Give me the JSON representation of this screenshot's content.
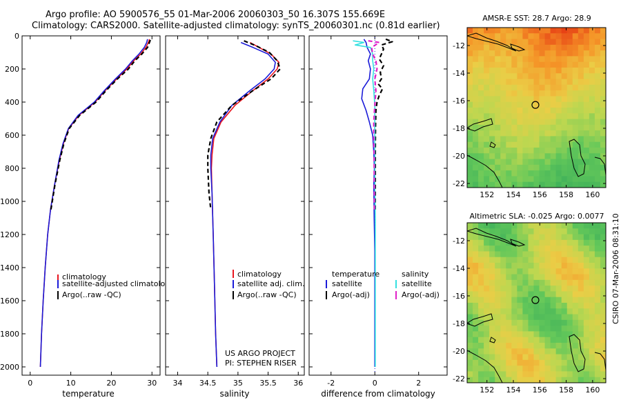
{
  "header": {
    "title_line1": "Argo profile: AO 5900576_55 01-Mar-2006 20060303_50 16.307S 155.669E",
    "title_line2": "Climatology: CARS2000. Satellite-adjusted climatology: synTS_20060301.nc (0.81d earlier)"
  },
  "footer": {
    "project": "US ARGO PROJECT",
    "pi": "PI: STEPHEN RISER",
    "stamp": "CSIRO 07-Mar-2006 08:31:10"
  },
  "colors": {
    "red": "#e8141e",
    "blue": "#1a1ad8",
    "black": "#000000",
    "cyan": "#33e0e0",
    "magenta": "#e020c8"
  },
  "chart_data": [
    {
      "type": "line",
      "id": "temperature",
      "xlabel": "temperature",
      "xlim": [
        -2,
        32
      ],
      "ylim": [
        0,
        2050
      ],
      "xticks": [
        0,
        10,
        20,
        30
      ],
      "yticks": [
        0,
        200,
        400,
        600,
        800,
        1000,
        1200,
        1400,
        1600,
        1800,
        2000
      ],
      "legend": [
        "climatology",
        "satellite-adjusted climatology",
        "Argo(..raw -QC)"
      ],
      "series": [
        {
          "name": "climatology",
          "color": "red",
          "points": [
            [
              29.4,
              20
            ],
            [
              29.1,
              40
            ],
            [
              28.5,
              70
            ],
            [
              27.2,
              110
            ],
            [
              25.5,
              150
            ],
            [
              23.8,
              200
            ],
            [
              21.3,
              260
            ],
            [
              18.5,
              330
            ],
            [
              16.0,
              400
            ],
            [
              12.0,
              480
            ],
            [
              9.5,
              560
            ],
            [
              8.2,
              650
            ],
            [
              7.2,
              750
            ],
            [
              6.0,
              900
            ],
            [
              5.0,
              1050
            ],
            [
              4.3,
              1200
            ],
            [
              3.7,
              1400
            ],
            [
              3.2,
              1600
            ],
            [
              2.8,
              1800
            ],
            [
              2.5,
              2000
            ]
          ]
        },
        {
          "name": "satellite-adjusted climatology",
          "color": "blue",
          "points": [
            [
              28.9,
              20
            ],
            [
              28.7,
              40
            ],
            [
              28.1,
              70
            ],
            [
              26.8,
              110
            ],
            [
              25.2,
              150
            ],
            [
              23.5,
              200
            ],
            [
              21.0,
              260
            ],
            [
              18.3,
              330
            ],
            [
              15.8,
              400
            ],
            [
              11.8,
              480
            ],
            [
              9.4,
              560
            ],
            [
              8.1,
              650
            ],
            [
              7.1,
              750
            ],
            [
              6.0,
              900
            ],
            [
              5.0,
              1050
            ],
            [
              4.3,
              1200
            ],
            [
              3.7,
              1400
            ],
            [
              3.2,
              1600
            ],
            [
              2.8,
              1800
            ],
            [
              2.5,
              2000
            ]
          ]
        },
        {
          "name": "Argo(..raw -QC)",
          "color": "black",
          "dashed": true,
          "points": [
            [
              29.6,
              25
            ],
            [
              29.3,
              45
            ],
            [
              28.9,
              70
            ],
            [
              27.5,
              110
            ],
            [
              25.8,
              150
            ],
            [
              24.2,
              200
            ],
            [
              21.5,
              260
            ],
            [
              18.7,
              330
            ],
            [
              16.2,
              400
            ],
            [
              12.2,
              480
            ],
            [
              9.6,
              560
            ],
            [
              8.3,
              650
            ],
            [
              7.3,
              750
            ],
            [
              6.1,
              900
            ],
            [
              5.1,
              1050
            ]
          ]
        }
      ]
    },
    {
      "type": "line",
      "id": "salinity",
      "xlabel": "salinity",
      "xlim": [
        33.8,
        36.1
      ],
      "ylim": [
        0,
        2050
      ],
      "xticks": [
        34,
        34.5,
        35,
        35.5,
        36
      ],
      "xticklabels": [
        "34",
        "34.5",
        "35",
        "35.5",
        "36"
      ],
      "yticks": [
        0,
        200,
        400,
        600,
        800,
        1000,
        1200,
        1400,
        1600,
        1800,
        2000
      ],
      "legend": [
        "climatology",
        "satellite adj. clim.",
        "Argo(..raw -QC)"
      ],
      "series": [
        {
          "name": "climatology",
          "color": "red",
          "points": [
            [
              35.2,
              40
            ],
            [
              35.35,
              70
            ],
            [
              35.55,
              110
            ],
            [
              35.68,
              160
            ],
            [
              35.65,
              200
            ],
            [
              35.5,
              260
            ],
            [
              35.25,
              330
            ],
            [
              34.95,
              420
            ],
            [
              34.72,
              520
            ],
            [
              34.6,
              620
            ],
            [
              34.57,
              720
            ],
            [
              34.56,
              800
            ],
            [
              34.57,
              950
            ],
            [
              34.59,
              1200
            ],
            [
              34.61,
              1500
            ],
            [
              34.63,
              1800
            ],
            [
              34.65,
              2000
            ]
          ]
        },
        {
          "name": "satellite adj. clim.",
          "color": "blue",
          "points": [
            [
              35.05,
              40
            ],
            [
              35.25,
              70
            ],
            [
              35.5,
              110
            ],
            [
              35.62,
              160
            ],
            [
              35.6,
              200
            ],
            [
              35.45,
              260
            ],
            [
              35.2,
              330
            ],
            [
              34.9,
              420
            ],
            [
              34.7,
              520
            ],
            [
              34.58,
              620
            ],
            [
              34.55,
              720
            ],
            [
              34.55,
              800
            ],
            [
              34.57,
              950
            ],
            [
              34.59,
              1200
            ],
            [
              34.61,
              1500
            ],
            [
              34.63,
              1800
            ],
            [
              34.65,
              2000
            ]
          ]
        },
        {
          "name": "Argo(..raw -QC)",
          "color": "black",
          "dashed": true,
          "points": [
            [
              35.1,
              30
            ],
            [
              35.3,
              60
            ],
            [
              35.52,
              100
            ],
            [
              35.65,
              150
            ],
            [
              35.7,
              200
            ],
            [
              35.55,
              260
            ],
            [
              35.25,
              330
            ],
            [
              34.9,
              420
            ],
            [
              34.65,
              520
            ],
            [
              34.55,
              620
            ],
            [
              34.5,
              720
            ],
            [
              34.5,
              800
            ],
            [
              34.52,
              950
            ],
            [
              34.55,
              1050
            ]
          ]
        }
      ]
    },
    {
      "type": "line",
      "id": "difference",
      "xlabel": "difference from climatology",
      "xlim": [
        -3,
        3.3
      ],
      "ylim": [
        0,
        2050
      ],
      "xticks": [
        -2,
        0,
        2
      ],
      "yticks": [
        0,
        200,
        400,
        600,
        800,
        1000,
        1200,
        1400,
        1600,
        1800,
        2000
      ],
      "legend_headers": [
        "temperature",
        "salinity"
      ],
      "legend": [
        "satellite",
        "Argo(-adj)",
        "satellite",
        "Argo(-adj)"
      ],
      "series": [
        {
          "name": "temperature satellite",
          "color": "blue",
          "points": [
            [
              -0.5,
              20
            ],
            [
              -0.4,
              40
            ],
            [
              -0.35,
              70
            ],
            [
              -0.2,
              110
            ],
            [
              -0.3,
              150
            ],
            [
              -0.2,
              200
            ],
            [
              -0.25,
              260
            ],
            [
              -0.55,
              320
            ],
            [
              -0.6,
              380
            ],
            [
              -0.4,
              450
            ],
            [
              -0.25,
              520
            ],
            [
              -0.1,
              600
            ],
            [
              -0.05,
              700
            ],
            [
              -0.02,
              800
            ],
            [
              -0.05,
              900
            ],
            [
              -0.03,
              1100
            ],
            [
              0,
              1300
            ],
            [
              0,
              2000
            ]
          ]
        },
        {
          "name": "temperature Argo(-adj)",
          "color": "black",
          "dashed": true,
          "points": [
            [
              0.5,
              20
            ],
            [
              0.8,
              35
            ],
            [
              0.3,
              55
            ],
            [
              0.4,
              80
            ],
            [
              0.3,
              110
            ],
            [
              0.2,
              140
            ],
            [
              0.4,
              180
            ],
            [
              0.25,
              220
            ],
            [
              0.3,
              260
            ],
            [
              0.15,
              290
            ],
            [
              0.35,
              320
            ],
            [
              0.2,
              360
            ],
            [
              0.1,
              400
            ],
            [
              0.05,
              450
            ],
            [
              0.03,
              550
            ],
            [
              0.02,
              700
            ],
            [
              0.02,
              900
            ],
            [
              0.02,
              1050
            ]
          ]
        },
        {
          "name": "salinity satellite",
          "color": "cyan",
          "points": [
            [
              -1.0,
              30
            ],
            [
              -0.5,
              40
            ],
            [
              -0.9,
              55
            ],
            [
              -0.2,
              70
            ],
            [
              -0.1,
              110
            ],
            [
              -0.1,
              150
            ],
            [
              -0.05,
              200
            ],
            [
              -0.1,
              260
            ],
            [
              -0.05,
              330
            ],
            [
              0,
              420
            ],
            [
              0,
              520
            ],
            [
              0,
              700
            ],
            [
              0,
              900
            ],
            [
              0.02,
              1100
            ],
            [
              0.02,
              1400
            ],
            [
              0.02,
              2000
            ]
          ]
        },
        {
          "name": "salinity Argo(-adj)",
          "color": "magenta",
          "dashed": true,
          "points": [
            [
              -0.3,
              30
            ],
            [
              0.2,
              40
            ],
            [
              -0.15,
              70
            ],
            [
              -0.1,
              110
            ],
            [
              0.05,
              150
            ],
            [
              0.1,
              200
            ],
            [
              0,
              260
            ],
            [
              0.05,
              330
            ],
            [
              0,
              420
            ],
            [
              -0.05,
              520
            ],
            [
              -0.05,
              620
            ],
            [
              -0.03,
              720
            ],
            [
              -0.03,
              800
            ],
            [
              -0.02,
              950
            ],
            [
              -0.02,
              1050
            ]
          ]
        }
      ]
    },
    {
      "type": "heatmap",
      "id": "sst_map",
      "title": "AMSR-E SST: 28.7 Argo: 28.9",
      "xlim": [
        150.5,
        161
      ],
      "ylim": [
        -22.3,
        -10.7
      ],
      "xticks": [
        152,
        154,
        156,
        158,
        160
      ],
      "yticks": [
        -12,
        -14,
        -16,
        -18,
        -20,
        -22
      ],
      "argo_position": [
        155.669,
        -16.307
      ]
    },
    {
      "type": "heatmap",
      "id": "sla_map",
      "title": "Altimetric SLA: -0.025 Argo: 0.0077",
      "xlim": [
        150.5,
        161
      ],
      "ylim": [
        -22.3,
        -10.7
      ],
      "xticks": [
        152,
        154,
        156,
        158,
        160
      ],
      "yticks": [
        -12,
        -14,
        -16,
        -18,
        -20,
        -22
      ],
      "argo_position": [
        155.669,
        -16.307
      ]
    }
  ]
}
